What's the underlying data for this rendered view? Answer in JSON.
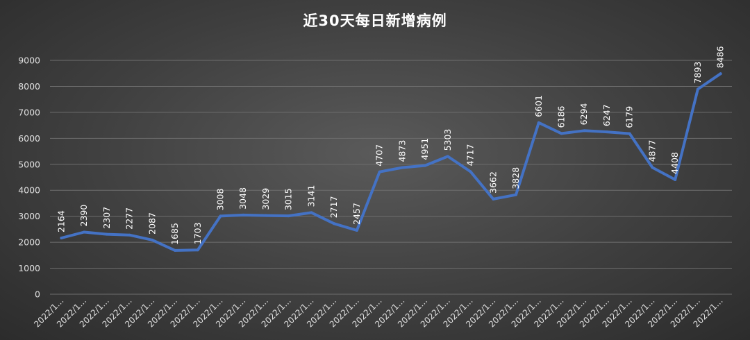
{
  "chart_data": {
    "type": "line",
    "title": "近30天每日新增病例",
    "xlabel": "",
    "ylabel": "",
    "ylim": [
      0,
      9000
    ],
    "yticks": [
      0,
      1000,
      2000,
      3000,
      4000,
      5000,
      6000,
      7000,
      8000,
      9000
    ],
    "grid": true,
    "legend": "none",
    "categories": [
      "2022/1…",
      "2022/1…",
      "2022/1…",
      "2022/1…",
      "2022/1…",
      "2022/1…",
      "2022/1…",
      "2022/1…",
      "2022/1…",
      "2022/1…",
      "2022/1…",
      "2022/1…",
      "2022/1…",
      "2022/1…",
      "2022/1…",
      "2022/1…",
      "2022/1…",
      "2022/1…",
      "2022/1…",
      "2022/1…",
      "2022/1…",
      "2022/1…",
      "2022/1…",
      "2022/1…",
      "2022/1…",
      "2022/1…",
      "2022/1…",
      "2022/1…",
      "2022/1…",
      "2022/1…"
    ],
    "series": [
      {
        "values": [
          2164,
          2390,
          2307,
          2277,
          2087,
          1685,
          1703,
          3008,
          3048,
          3029,
          3015,
          3141,
          2717,
          2457,
          4707,
          4873,
          4951,
          5303,
          4717,
          3662,
          3828,
          6601,
          6186,
          6294,
          6247,
          6179,
          4877,
          4408,
          7893,
          8486
        ],
        "color": "#4472C4"
      }
    ]
  }
}
